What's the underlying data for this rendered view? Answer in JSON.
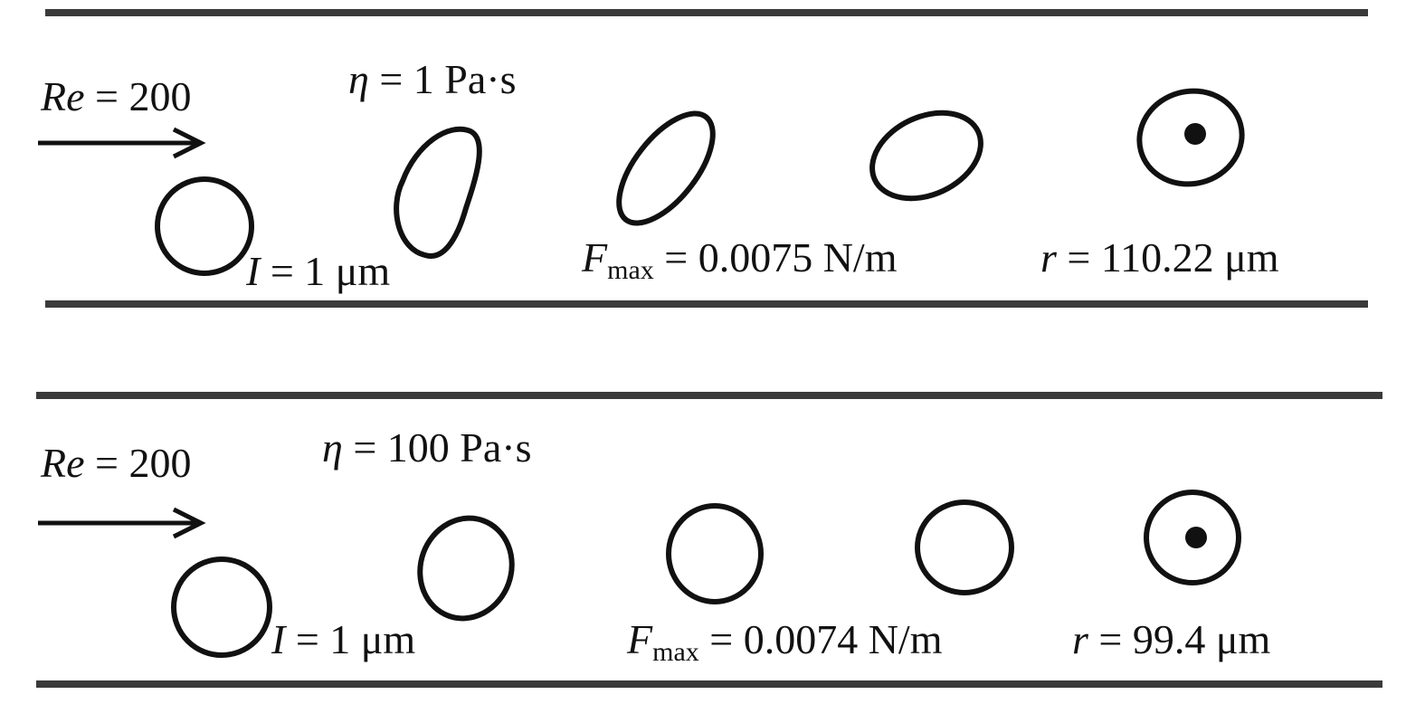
{
  "panels": [
    {
      "re": {
        "symbol": "Re",
        "rest": " = 200"
      },
      "eta": {
        "symbol": "η",
        "rest": " = 1 Pa·s"
      },
      "thickness": {
        "symbol": "I",
        "rest": " = 1 μm"
      },
      "fmax": {
        "symbol": "F",
        "subscript": "max",
        "rest": " = 0.0075 N/m"
      },
      "radius": {
        "symbol": "r",
        "rest": " = 110.22 μm"
      }
    },
    {
      "re": {
        "symbol": "Re",
        "rest": " = 200"
      },
      "eta": {
        "symbol": "η",
        "rest": " = 100 Pa·s"
      },
      "thickness": {
        "symbol": "I",
        "rest": " = 1 μm"
      },
      "fmax": {
        "symbol": "F",
        "subscript": "max",
        "rest": " = 0.0074 N/m"
      },
      "radius": {
        "symbol": "r",
        "rest": " = 99.4 μm"
      }
    }
  ]
}
